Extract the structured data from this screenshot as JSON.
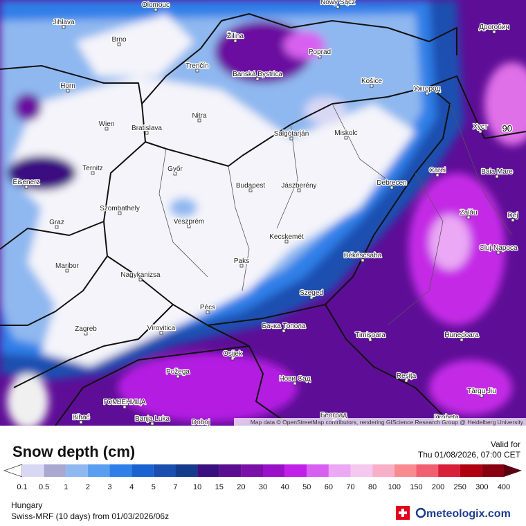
{
  "map": {
    "cities": [
      "Olomouc",
      "Nowy Sącz",
      "Jihlava",
      "Brno",
      "Žilina",
      "Poprad",
      "Дрогобич",
      "Banská Bystrica",
      "Trenčín",
      "Košice",
      "Ужгород",
      "Horn",
      "Nitra",
      "Wien",
      "Bratislava",
      "Salgótarján",
      "Miskolc",
      "Хуст",
      "Ternitz",
      "Győr",
      "Carei",
      "Baia Mare",
      "Budapest",
      "Jászberény",
      "Debrecen",
      "Eisenerz",
      "Szombathely",
      "Veszprém",
      "Zalău",
      "Graz",
      "Dej",
      "Kecskemét",
      "Cluj-Napoca",
      "Békéscsaba",
      "Maribor",
      "Paks",
      "Nagykanizsa",
      "Szeged",
      "Pécs",
      "Zagreb",
      "Virovitica",
      "Бачка Топола",
      "Timișoara",
      "Hunedoara",
      "Osijek",
      "Požega",
      "Нови Сад",
      "Reșița",
      "Târgu Jiu",
      "ГОМЈЕНИЦА",
      "Bihać",
      "Banja Luka",
      "Doboj",
      "Београд",
      "Drobeta"
    ],
    "contour_label": "90",
    "attribution": "Map data © OpenStreetMap contributors, rendering GIScience Research Group @ Heidelberg University"
  },
  "legend": {
    "title": "Snow depth (cm)",
    "valid_label": "Valid for",
    "valid_time": "Thu 01/08/2026, 07:00 CET",
    "ticks": [
      0.1,
      0.5,
      1,
      2,
      3,
      4,
      5,
      7,
      10,
      15,
      20,
      30,
      40,
      50,
      60,
      70,
      80,
      100,
      150,
      200,
      250,
      300,
      400
    ],
    "colors": [
      "#ffffff",
      "#d8d8f5",
      "#a8a8d0",
      "#8fb8f0",
      "#5a9ef0",
      "#2f7fe8",
      "#1a62d0",
      "#1a4fb0",
      "#143c8a",
      "#3a1080",
      "#5a0e90",
      "#7a10a8",
      "#9a10c8",
      "#c020e8",
      "#d860f0",
      "#eaa8f5",
      "#f5c8f0",
      "#f8b0c8",
      "#f88a90",
      "#f06070",
      "#d8203a",
      "#b00010",
      "#880010",
      "#5a0010"
    ]
  },
  "footer": {
    "region": "Hungary",
    "model": "Swiss-MRF (10 days) from 01/03/2026/06z",
    "brand": "meteologix.com"
  }
}
